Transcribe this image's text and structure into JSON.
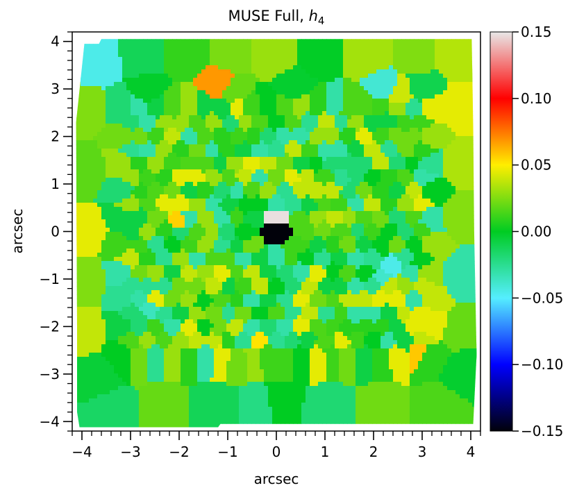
{
  "chart_data": {
    "type": "heatmap",
    "title_main": "MUSE Full, ",
    "title_symbol": "h",
    "title_subscript": "4",
    "xlabel": "arcsec",
    "ylabel": "arcsec",
    "xlim": [
      -4.2,
      4.2
    ],
    "ylim": [
      -4.2,
      4.2
    ],
    "xticks": [
      -4,
      -3,
      -2,
      -1,
      0,
      1,
      2,
      3,
      4
    ],
    "yticks": [
      -4,
      -3,
      -2,
      -1,
      0,
      1,
      2,
      3,
      4
    ],
    "xtick_labels": [
      "−4",
      "−3",
      "−2",
      "−1",
      "0",
      "1",
      "2",
      "3",
      "4"
    ],
    "ytick_labels": [
      "−4",
      "−3",
      "−2",
      "−1",
      "0",
      "1",
      "2",
      "3",
      "4"
    ],
    "colorbar": {
      "range": [
        -0.15,
        0.15
      ],
      "ticks": [
        0.15,
        0.1,
        0.05,
        0.0,
        -0.05,
        -0.1,
        -0.15
      ],
      "tick_labels": [
        "0.15",
        "0.10",
        "0.05",
        "0.00",
        "−0.05",
        "−0.10",
        "−0.15"
      ],
      "colormap": "sauron",
      "colormap_stops": [
        {
          "value": -0.15,
          "color": "#01010a"
        },
        {
          "value": -0.1,
          "color": "#0000ff"
        },
        {
          "value": -0.05,
          "color": "#55eeff"
        },
        {
          "value": 0.0,
          "color": "#00cc22"
        },
        {
          "value": 0.05,
          "color": "#ffee00"
        },
        {
          "value": 0.1,
          "color": "#ff0000"
        },
        {
          "value": 0.15,
          "color": "#e8e8e8"
        }
      ]
    },
    "cells": [
      {
        "x": -3.65,
        "y": 3.55,
        "v": -0.045
      },
      {
        "x": -2.75,
        "y": 3.7,
        "v": -0.012
      },
      {
        "x": -1.85,
        "y": 3.7,
        "v": 0.01
      },
      {
        "x": -0.95,
        "y": 3.7,
        "v": 0.024
      },
      {
        "x": -0.05,
        "y": 3.7,
        "v": 0.03
      },
      {
        "x": 0.9,
        "y": 3.7,
        "v": -0.001
      },
      {
        "x": 1.9,
        "y": 3.7,
        "v": 0.032
      },
      {
        "x": 2.85,
        "y": 3.7,
        "v": 0.025
      },
      {
        "x": 3.75,
        "y": 3.7,
        "v": 0.035
      },
      {
        "x": -3.9,
        "y": 2.55,
        "v": 0.025
      },
      {
        "x": 3.8,
        "y": 2.6,
        "v": 0.045
      },
      {
        "x": -3.9,
        "y": 1.3,
        "v": 0.018
      },
      {
        "x": 3.8,
        "y": 1.4,
        "v": 0.034
      },
      {
        "x": -3.9,
        "y": 0.0,
        "v": 0.045
      },
      {
        "x": 3.8,
        "y": 0.3,
        "v": 0.026
      },
      {
        "x": -3.9,
        "y": -1.1,
        "v": 0.025
      },
      {
        "x": 3.8,
        "y": -0.9,
        "v": -0.03
      },
      {
        "x": -3.9,
        "y": -2.1,
        "v": 0.038
      },
      {
        "x": 3.8,
        "y": -2.1,
        "v": 0.02
      },
      {
        "x": -3.7,
        "y": -3.05,
        "v": -0.005
      },
      {
        "x": 3.85,
        "y": -2.9,
        "v": -0.003
      },
      {
        "x": -3.4,
        "y": -3.8,
        "v": -0.015
      },
      {
        "x": -2.3,
        "y": -3.75,
        "v": 0.02
      },
      {
        "x": -1.3,
        "y": -3.75,
        "v": -0.012
      },
      {
        "x": -0.25,
        "y": -3.75,
        "v": -0.022
      },
      {
        "x": 0.0,
        "y": -3.7,
        "v": 0.0
      },
      {
        "x": 1.1,
        "y": -3.75,
        "v": -0.018
      },
      {
        "x": 2.2,
        "y": -3.75,
        "v": 0.022
      },
      {
        "x": 3.3,
        "y": -3.75,
        "v": 0.015
      },
      {
        "x": -1.15,
        "y": 3.1,
        "v": 0.068
      },
      {
        "x": -2.65,
        "y": 2.9,
        "v": -0.002
      },
      {
        "x": -0.9,
        "y": 2.95,
        "v": 0.02
      },
      {
        "x": 0.35,
        "y": 3.0,
        "v": -0.003
      },
      {
        "x": 2.2,
        "y": 3.0,
        "v": -0.04
      },
      {
        "x": 2.55,
        "y": 2.85,
        "v": 0.04
      },
      {
        "x": 3.0,
        "y": 2.95,
        "v": -0.01
      },
      {
        "x": 0.0,
        "y": 0.35,
        "v": 0.148
      },
      {
        "x": 0.0,
        "y": 0.0,
        "v": -0.16
      },
      {
        "x": -2.0,
        "y": 0.2,
        "v": 0.056
      },
      {
        "x": 2.4,
        "y": -0.7,
        "v": -0.045
      },
      {
        "x": 2.15,
        "y": -1.0,
        "v": -0.038
      },
      {
        "x": 2.95,
        "y": -2.5,
        "v": 0.058
      },
      {
        "x": -0.4,
        "y": -2.3,
        "v": 0.052
      },
      {
        "x": -2.6,
        "y": -1.6,
        "v": -0.035
      }
    ]
  }
}
